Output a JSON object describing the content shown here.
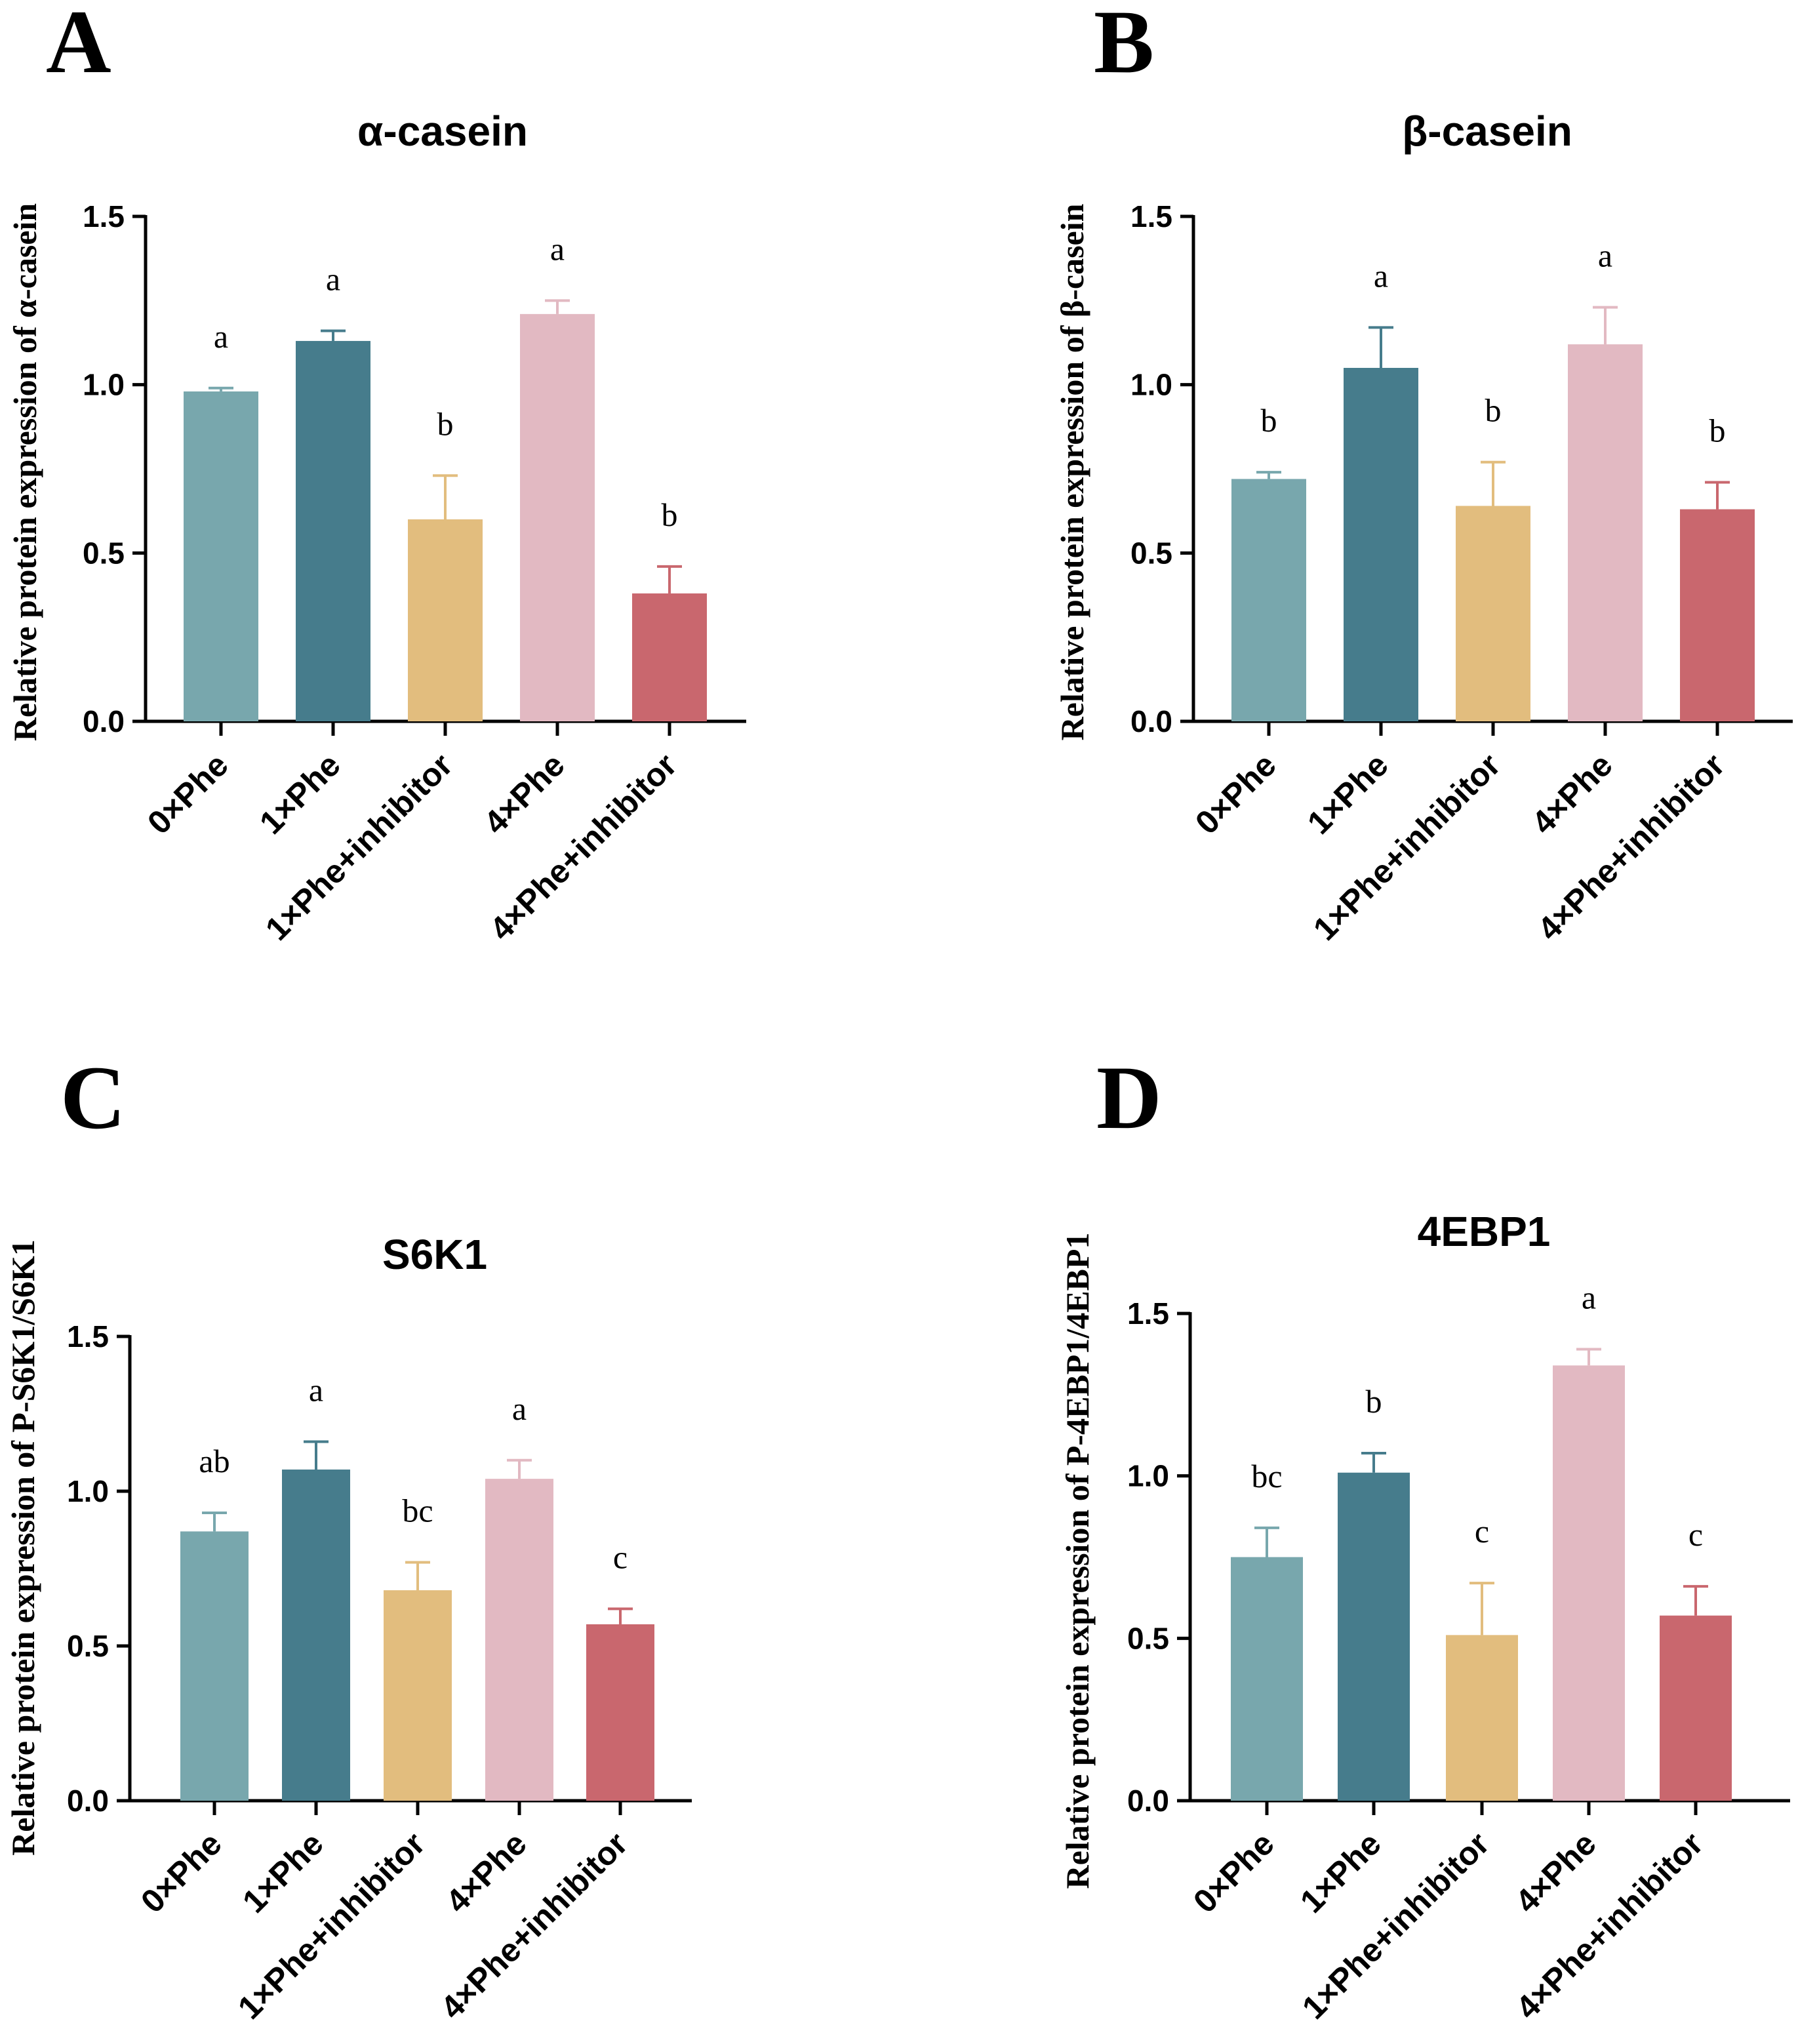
{
  "figure": {
    "colors": [
      "#78a7ad",
      "#467c8c",
      "#e2bd7e",
      "#e2b9c2",
      "#c9676e"
    ],
    "categories": [
      "0×Phe",
      "1×Phe",
      "1×Phe+inhibitor",
      "4×Phe",
      "4×Phe+inhibitor"
    ]
  },
  "chart_data": [
    {
      "panel": "A",
      "type": "bar",
      "title": "α-casein",
      "xlabel": "",
      "ylabel": "Relative protein expression of α-casein",
      "categories": [
        "0×Phe",
        "1×Phe",
        "1×Phe+inhibitor",
        "4×Phe",
        "4×Phe+inhibitor"
      ],
      "values": [
        0.98,
        1.13,
        0.6,
        1.21,
        0.38
      ],
      "errors": [
        0.01,
        0.03,
        0.13,
        0.04,
        0.08
      ],
      "significance": [
        "a",
        "a",
        "b",
        "a",
        "b"
      ],
      "ylim": [
        0,
        1.5
      ],
      "yticks": [
        "0.0",
        "0.5",
        "1.0",
        "1.5"
      ]
    },
    {
      "panel": "B",
      "type": "bar",
      "title": "β-casein",
      "xlabel": "",
      "ylabel": "Relative protein expression of β-casein",
      "categories": [
        "0×Phe",
        "1×Phe",
        "1×Phe+inhibitor",
        "4×Phe",
        "4×Phe+inhibitor"
      ],
      "values": [
        0.72,
        1.05,
        0.64,
        1.12,
        0.63
      ],
      "errors": [
        0.02,
        0.12,
        0.13,
        0.11,
        0.08
      ],
      "significance": [
        "b",
        "a",
        "b",
        "a",
        "b"
      ],
      "ylim": [
        0,
        1.5
      ],
      "yticks": [
        "0.0",
        "0.5",
        "1.0",
        "1.5"
      ]
    },
    {
      "panel": "C",
      "type": "bar",
      "title": "S6K1",
      "xlabel": "",
      "ylabel": "Relative protein expression of P-S6K1/S6K1",
      "categories": [
        "0×Phe",
        "1×Phe",
        "1×Phe+inhibitor",
        "4×Phe",
        "4×Phe+inhibitor"
      ],
      "values": [
        0.87,
        1.07,
        0.68,
        1.04,
        0.57
      ],
      "errors": [
        0.06,
        0.09,
        0.09,
        0.06,
        0.05
      ],
      "significance": [
        "ab",
        "a",
        "bc",
        "a",
        "c"
      ],
      "ylim": [
        0,
        1.5
      ],
      "yticks": [
        "0.0",
        "0.5",
        "1.0",
        "1.5"
      ]
    },
    {
      "panel": "D",
      "type": "bar",
      "title": "4EBP1",
      "xlabel": "",
      "ylabel": "Relative protein expression of P-4EBP1/4EBP1",
      "categories": [
        "0×Phe",
        "1×Phe",
        "1×Phe+inhibitor",
        "4×Phe",
        "4×Phe+inhibitor"
      ],
      "values": [
        0.75,
        1.01,
        0.51,
        1.34,
        0.57
      ],
      "errors": [
        0.09,
        0.06,
        0.16,
        0.05,
        0.09
      ],
      "significance": [
        "bc",
        "b",
        "c",
        "a",
        "c"
      ],
      "ylim": [
        0,
        1.5
      ],
      "yticks": [
        "0.0",
        "0.5",
        "1.0",
        "1.5"
      ]
    }
  ]
}
